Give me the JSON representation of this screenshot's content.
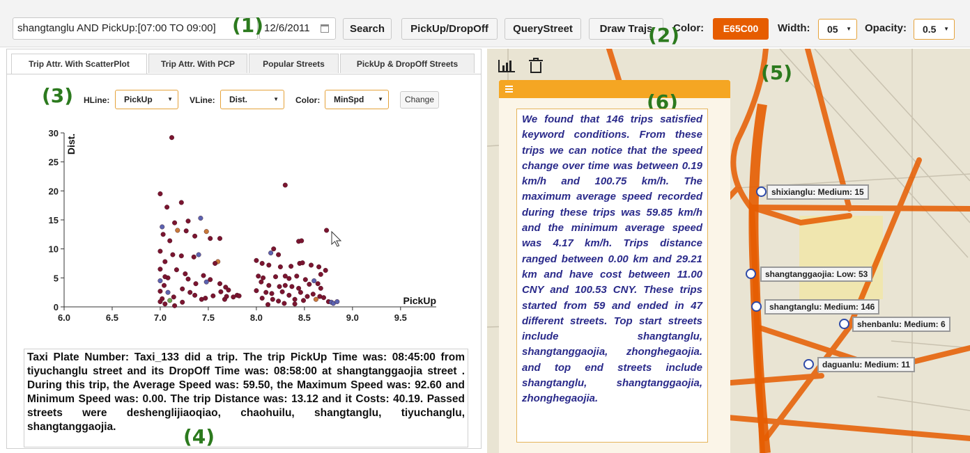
{
  "toolbar": {
    "query_value": "shangtanglu AND PickUp:[07:00 TO 09:00]",
    "date_value": "12/6/2011",
    "calendar_icon": "calendar-icon",
    "search_label": "Search",
    "pickup_dropoff_label": "PickUp/DropOff",
    "query_street_label": "QueryStreet",
    "draw_trajs_label": "Draw Trajs",
    "color_label": "Color:",
    "color_value": "E65C00",
    "color_hex": "#e65c00",
    "width_label": "Width:",
    "width_value": "05",
    "opacity_label": "Opacity:",
    "opacity_value": "0.5"
  },
  "callouts": {
    "c1": "(1)",
    "c2": "(2)",
    "c3": "(3)",
    "c4": "(4)",
    "c5": "(5)",
    "c6": "(6)"
  },
  "tabs": [
    {
      "label": "Trip Attr. With ScatterPlot"
    },
    {
      "label": "Trip Attr. With PCP"
    },
    {
      "label": "Popular Streets"
    },
    {
      "label": "PickUp & DropOff Streets"
    }
  ],
  "controls": {
    "hline_label": "HLine:",
    "hline_value": "PickUp",
    "vline_label": "VLine:",
    "vline_value": "Dist.",
    "color_label": "Color:",
    "color_value": "MinSpd",
    "change_label": "Change"
  },
  "chart_data": {
    "type": "scatter",
    "xlabel": "PickUp",
    "ylabel": "Dist.",
    "xlim": [
      6.0,
      9.9
    ],
    "ylim": [
      0,
      30
    ],
    "xticks": [
      "6.0",
      "6.5",
      "7.0",
      "7.5",
      "8.0",
      "8.5",
      "9.0",
      "9.5"
    ],
    "yticks": [
      "0",
      "5",
      "10",
      "15",
      "20",
      "25",
      "30"
    ],
    "grid": false,
    "colors": {
      "main": "#7a1530",
      "blue": "#5b63b0",
      "orange": "#c8793a",
      "green": "#6aa84f"
    },
    "points": [
      [
        7.12,
        29.2,
        "main"
      ],
      [
        7.0,
        19.5,
        "main"
      ],
      [
        7.22,
        18.0,
        "main"
      ],
      [
        7.07,
        17.2,
        "main"
      ],
      [
        7.15,
        14.5,
        "main"
      ],
      [
        7.29,
        14.8,
        "main"
      ],
      [
        7.42,
        15.3,
        "blue"
      ],
      [
        7.48,
        13.0,
        "orange"
      ],
      [
        7.03,
        12.5,
        "main"
      ],
      [
        7.02,
        13.8,
        "blue"
      ],
      [
        7.18,
        13.2,
        "orange"
      ],
      [
        7.27,
        13.1,
        "main"
      ],
      [
        7.52,
        11.8,
        "main"
      ],
      [
        7.62,
        11.8,
        "main"
      ],
      [
        7.36,
        12.2,
        "main"
      ],
      [
        7.1,
        11.4,
        "main"
      ],
      [
        7.0,
        9.6,
        "main"
      ],
      [
        7.13,
        9.0,
        "main"
      ],
      [
        7.22,
        8.8,
        "main"
      ],
      [
        7.4,
        9.0,
        "blue"
      ],
      [
        7.35,
        8.6,
        "main"
      ],
      [
        7.6,
        7.8,
        "orange"
      ],
      [
        7.57,
        7.5,
        "main"
      ],
      [
        7.05,
        7.8,
        "main"
      ],
      [
        7.0,
        6.5,
        "main"
      ],
      [
        7.08,
        5.0,
        "main"
      ],
      [
        7.17,
        6.4,
        "main"
      ],
      [
        7.26,
        5.7,
        "main"
      ],
      [
        7.29,
        4.8,
        "main"
      ],
      [
        7.45,
        5.4,
        "main"
      ],
      [
        7.52,
        4.7,
        "main"
      ],
      [
        7.0,
        4.5,
        "blue"
      ],
      [
        7.04,
        3.7,
        "main"
      ],
      [
        7.05,
        5.2,
        "main"
      ],
      [
        7.23,
        3.1,
        "main"
      ],
      [
        7.37,
        4.0,
        "main"
      ],
      [
        7.48,
        4.3,
        "blue"
      ],
      [
        7.62,
        4.0,
        "main"
      ],
      [
        7.68,
        3.4,
        "main"
      ],
      [
        7.71,
        2.9,
        "main"
      ],
      [
        7.0,
        2.7,
        "main"
      ],
      [
        7.08,
        2.5,
        "blue"
      ],
      [
        7.02,
        1.4,
        "main"
      ],
      [
        7.14,
        1.7,
        "main"
      ],
      [
        7.31,
        2.5,
        "main"
      ],
      [
        7.36,
        2.0,
        "main"
      ],
      [
        7.43,
        1.3,
        "main"
      ],
      [
        7.47,
        1.5,
        "main"
      ],
      [
        7.55,
        1.9,
        "main"
      ],
      [
        7.67,
        1.3,
        "main"
      ],
      [
        7.8,
        2.0,
        "main"
      ],
      [
        7.76,
        1.7,
        "main"
      ],
      [
        7.0,
        0.9,
        "main"
      ],
      [
        7.1,
        1.1,
        "green"
      ],
      [
        7.05,
        0.5,
        "main"
      ],
      [
        7.15,
        0.2,
        "main"
      ],
      [
        7.23,
        0.8,
        "main"
      ],
      [
        7.69,
        1.8,
        "main"
      ],
      [
        7.63,
        2.6,
        "main"
      ],
      [
        7.82,
        1.9,
        "main"
      ],
      [
        8.3,
        21.0,
        "main"
      ],
      [
        8.73,
        13.2,
        "main"
      ],
      [
        8.44,
        11.3,
        "main"
      ],
      [
        8.47,
        11.4,
        "main"
      ],
      [
        8.18,
        10.0,
        "main"
      ],
      [
        8.23,
        9.0,
        "main"
      ],
      [
        8.15,
        9.3,
        "blue"
      ],
      [
        8.0,
        8.0,
        "main"
      ],
      [
        8.06,
        7.5,
        "main"
      ],
      [
        8.13,
        7.2,
        "main"
      ],
      [
        8.25,
        6.9,
        "main"
      ],
      [
        8.36,
        7.0,
        "main"
      ],
      [
        8.45,
        7.5,
        "main"
      ],
      [
        8.48,
        7.6,
        "main"
      ],
      [
        8.57,
        7.2,
        "main"
      ],
      [
        8.65,
        6.9,
        "main"
      ],
      [
        8.67,
        5.6,
        "main"
      ],
      [
        8.72,
        6.3,
        "main"
      ],
      [
        8.02,
        5.3,
        "main"
      ],
      [
        8.07,
        5.0,
        "main"
      ],
      [
        8.2,
        5.2,
        "main"
      ],
      [
        8.3,
        5.3,
        "main"
      ],
      [
        8.34,
        4.9,
        "main"
      ],
      [
        8.42,
        5.3,
        "main"
      ],
      [
        8.51,
        4.7,
        "main"
      ],
      [
        8.6,
        4.5,
        "blue"
      ],
      [
        8.64,
        4.0,
        "main"
      ],
      [
        8.05,
        4.3,
        "main"
      ],
      [
        8.13,
        3.7,
        "main"
      ],
      [
        8.24,
        3.5,
        "main"
      ],
      [
        8.3,
        3.7,
        "main"
      ],
      [
        8.37,
        3.5,
        "main"
      ],
      [
        8.44,
        3.2,
        "main"
      ],
      [
        8.55,
        3.9,
        "main"
      ],
      [
        8.67,
        3.2,
        "main"
      ],
      [
        8.0,
        2.8,
        "main"
      ],
      [
        8.1,
        2.5,
        "main"
      ],
      [
        8.16,
        2.3,
        "main"
      ],
      [
        8.27,
        2.6,
        "main"
      ],
      [
        8.34,
        2.0,
        "main"
      ],
      [
        8.46,
        2.5,
        "main"
      ],
      [
        8.53,
        1.8,
        "main"
      ],
      [
        8.59,
        2.2,
        "main"
      ],
      [
        8.66,
        1.8,
        "main"
      ],
      [
        8.06,
        1.5,
        "main"
      ],
      [
        8.17,
        1.3,
        "main"
      ],
      [
        8.23,
        1.0,
        "main"
      ],
      [
        8.4,
        1.3,
        "main"
      ],
      [
        8.49,
        1.1,
        "main"
      ],
      [
        8.62,
        1.3,
        "orange"
      ],
      [
        8.7,
        1.6,
        "main"
      ],
      [
        8.75,
        0.9,
        "main"
      ],
      [
        8.78,
        0.8,
        "blue"
      ],
      [
        8.8,
        0.6,
        "blue"
      ],
      [
        8.84,
        0.9,
        "blue"
      ],
      [
        8.29,
        0.6,
        "main"
      ],
      [
        8.12,
        0.4,
        "main"
      ],
      [
        8.4,
        0.5,
        "main"
      ]
    ]
  },
  "info_text": "Taxi Plate Number: Taxi_133 did a trip. The trip PickUp Time was: 08:45:00 from tiyuchanglu street and its DropOff Time was: 08:58:00 at shangtanggaojia street . During this trip, the Average Speed was: 59.50, the Maximum Speed was: 92.60 and Minimum Speed was: 0.00. The trip Distance was: 13.12 and it Costs: 40.19. Passed streets were deshenglijiaoqiao, chaohuilu, shangtanglu, tiyuchanglu, shangtanggaojia.",
  "map": {
    "chart_icon": "bar-chart-icon",
    "trash_icon": "trash-icon",
    "menu_icon": "menu-icon",
    "road_color": "#e65c00",
    "summary_text": "We found that 146 trips satisfied keyword conditions. From these trips we can notice that the speed change over time was between 0.19 km/h and 100.75 km/h. The maximum average speed recorded during these trips was 59.85 km/h and the minimum average speed was 4.17 km/h. Trips distance ranged between 0.00 km and 29.21 km and have cost between 11.00 CNY and 100.53 CNY. These trips started from 59 and ended in 47 different streets. Top start streets include shangtanglu, shangtanggaojia, zhonghegaojia. and top end streets include shangtanglu, shangtanggaojia, zhonghegaojia.",
    "streets": [
      {
        "label": "shixianglu: Medium: 15"
      },
      {
        "label": "shangtanggaojia: Low: 53"
      },
      {
        "label": "shangtanglu: Medium: 146"
      },
      {
        "label": "shenbanlu: Medium: 6"
      },
      {
        "label": "daguanlu: Medium: 11"
      }
    ]
  }
}
